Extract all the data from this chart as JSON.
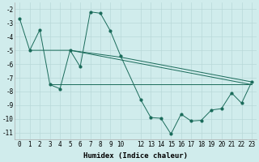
{
  "line1_x": [
    0,
    1,
    2,
    3,
    4,
    5,
    6,
    7,
    8,
    9,
    10,
    12,
    13,
    14,
    15,
    16,
    17,
    18,
    19,
    20,
    21,
    22,
    23
  ],
  "line1_y": [
    -2.7,
    -5.0,
    -3.5,
    -7.5,
    -7.8,
    -5.0,
    -6.2,
    -2.2,
    -2.3,
    -3.6,
    -5.4,
    -8.6,
    -9.9,
    -9.95,
    -11.1,
    -9.65,
    -10.15,
    -10.1,
    -9.35,
    -9.25,
    -8.1,
    -8.85,
    -7.3
  ],
  "line2_x": [
    1,
    5,
    23
  ],
  "line2_y": [
    -5.0,
    -5.0,
    -7.5
  ],
  "line3_x": [
    3,
    23
  ],
  "line3_y": [
    -7.5,
    -7.5
  ],
  "line4_x": [
    5,
    10,
    23
  ],
  "line4_y": [
    -5.0,
    -5.5,
    -7.3
  ],
  "color": "#1a6b5a",
  "bg_color": "#d0ecec",
  "grid_color": "#b8d8d8",
  "xlabel": "Humidex (Indice chaleur)",
  "xlim": [
    -0.5,
    23.5
  ],
  "ylim": [
    -11.5,
    -1.5
  ],
  "xticks": [
    0,
    1,
    2,
    3,
    4,
    5,
    6,
    7,
    8,
    9,
    10,
    12,
    13,
    14,
    15,
    16,
    17,
    18,
    19,
    20,
    21,
    22,
    23
  ],
  "yticks": [
    -2,
    -3,
    -4,
    -5,
    -6,
    -7,
    -8,
    -9,
    -10,
    -11
  ],
  "tick_fontsize": 5.5,
  "label_fontsize": 6.5,
  "linewidth": 0.7,
  "markersize": 2.0
}
